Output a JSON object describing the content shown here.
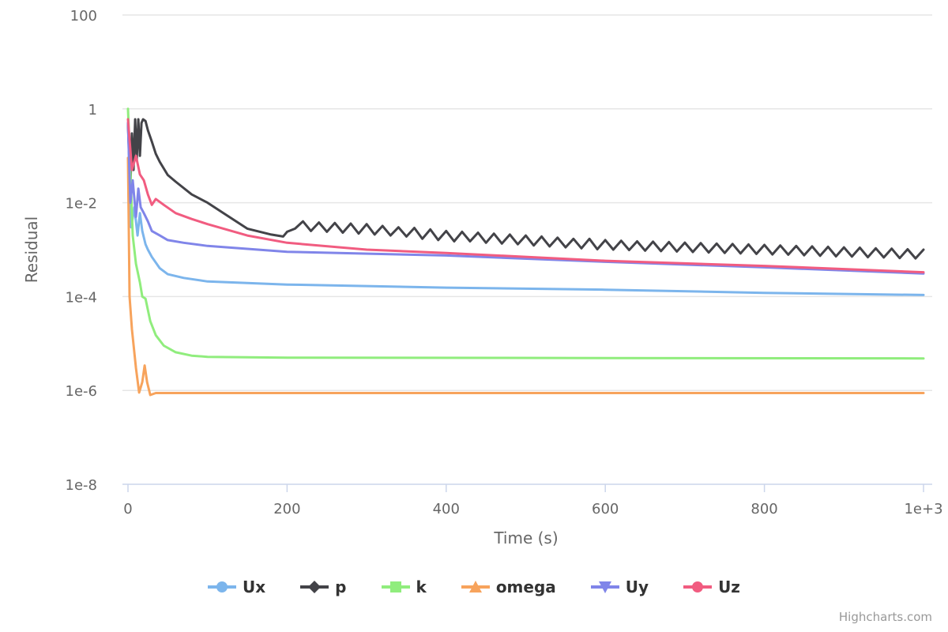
{
  "chart_data": {
    "type": "line",
    "title": "",
    "xlabel": "Time (s)",
    "ylabel": "Residual",
    "xlim": [
      0,
      1000
    ],
    "ylim_log10": [
      -8,
      2
    ],
    "y_scale": "log",
    "x_ticks": [
      0,
      200,
      400,
      600,
      800,
      1000
    ],
    "x_tick_labels": [
      "0",
      "200",
      "400",
      "600",
      "800",
      "1e+3"
    ],
    "y_ticks_log10": [
      2,
      0,
      -2,
      -4,
      -6,
      -8
    ],
    "y_tick_labels": [
      "100",
      "1",
      "1e-2",
      "1e-4",
      "1e-6",
      "1e-8"
    ],
    "grid": true,
    "legend_position": "bottom-center",
    "series": [
      {
        "name": "Ux",
        "color": "#7cb5ec",
        "marker": "circle",
        "points": [
          [
            0,
            0.5
          ],
          [
            4,
            0.003
          ],
          [
            8,
            0.008
          ],
          [
            12,
            0.002
          ],
          [
            15,
            0.006
          ],
          [
            18,
            0.0025
          ],
          [
            22,
            0.0013
          ],
          [
            25,
            0.001
          ],
          [
            30,
            0.0007
          ],
          [
            40,
            0.0004
          ],
          [
            50,
            0.0003
          ],
          [
            70,
            0.00025
          ],
          [
            100,
            0.00021
          ],
          [
            200,
            0.00018
          ],
          [
            400,
            0.000155
          ],
          [
            600,
            0.00014
          ],
          [
            800,
            0.00012
          ],
          [
            1000,
            0.000108
          ]
        ]
      },
      {
        "name": "p",
        "color": "#434348",
        "marker": "diamond",
        "points": [
          [
            0,
            0.5
          ],
          [
            3,
            0.02
          ],
          [
            5,
            0.3
          ],
          [
            7,
            0.05
          ],
          [
            9,
            0.6
          ],
          [
            11,
            0.08
          ],
          [
            13,
            0.6
          ],
          [
            15,
            0.1
          ],
          [
            17,
            0.5
          ],
          [
            19,
            0.6
          ],
          [
            22,
            0.55
          ],
          [
            25,
            0.35
          ],
          [
            30,
            0.2
          ],
          [
            35,
            0.11
          ],
          [
            40,
            0.074
          ],
          [
            50,
            0.039
          ],
          [
            60,
            0.028
          ],
          [
            80,
            0.015
          ],
          [
            100,
            0.01
          ],
          [
            120,
            0.006
          ],
          [
            150,
            0.0028
          ],
          [
            180,
            0.0021
          ],
          [
            195,
            0.0019
          ],
          [
            200,
            0.0024
          ],
          [
            210,
            0.0028
          ],
          [
            220,
            0.004
          ],
          [
            230,
            0.0025
          ],
          [
            240,
            0.0038
          ],
          [
            250,
            0.0024
          ],
          [
            260,
            0.0037
          ],
          [
            270,
            0.0023
          ],
          [
            280,
            0.0036
          ],
          [
            290,
            0.0022
          ],
          [
            300,
            0.0035
          ],
          [
            310,
            0.0021
          ],
          [
            320,
            0.0032
          ],
          [
            330,
            0.002
          ],
          [
            340,
            0.003
          ],
          [
            350,
            0.0019
          ],
          [
            360,
            0.0029
          ],
          [
            370,
            0.0017
          ],
          [
            380,
            0.0027
          ],
          [
            390,
            0.0016
          ],
          [
            400,
            0.0025
          ],
          [
            410,
            0.0015
          ],
          [
            420,
            0.0024
          ],
          [
            430,
            0.0015
          ],
          [
            440,
            0.0023
          ],
          [
            450,
            0.0014
          ],
          [
            460,
            0.0022
          ],
          [
            470,
            0.00135
          ],
          [
            480,
            0.0021
          ],
          [
            490,
            0.0013
          ],
          [
            500,
            0.002
          ],
          [
            510,
            0.00123
          ],
          [
            520,
            0.0019
          ],
          [
            530,
            0.00117
          ],
          [
            540,
            0.0018
          ],
          [
            550,
            0.00112
          ],
          [
            560,
            0.0017
          ],
          [
            570,
            0.00107
          ],
          [
            580,
            0.0017
          ],
          [
            590,
            0.00102
          ],
          [
            600,
            0.0016
          ],
          [
            610,
            0.001
          ],
          [
            620,
            0.00155
          ],
          [
            630,
            0.00098
          ],
          [
            640,
            0.0015
          ],
          [
            650,
            0.00095
          ],
          [
            660,
            0.00148
          ],
          [
            670,
            0.00093
          ],
          [
            680,
            0.00145
          ],
          [
            690,
            0.00091
          ],
          [
            700,
            0.00141
          ],
          [
            710,
            0.00089
          ],
          [
            720,
            0.00138
          ],
          [
            730,
            0.00087
          ],
          [
            740,
            0.00135
          ],
          [
            750,
            0.00085
          ],
          [
            760,
            0.00132
          ],
          [
            770,
            0.00083
          ],
          [
            780,
            0.00129
          ],
          [
            790,
            0.00081
          ],
          [
            800,
            0.00126
          ],
          [
            810,
            0.00079
          ],
          [
            820,
            0.00123
          ],
          [
            830,
            0.00078
          ],
          [
            840,
            0.0012
          ],
          [
            850,
            0.00076
          ],
          [
            860,
            0.00117
          ],
          [
            870,
            0.00074
          ],
          [
            880,
            0.00115
          ],
          [
            890,
            0.00072
          ],
          [
            900,
            0.00112
          ],
          [
            910,
            0.00071
          ],
          [
            920,
            0.0011
          ],
          [
            930,
            0.00069
          ],
          [
            940,
            0.00107
          ],
          [
            950,
            0.00068
          ],
          [
            960,
            0.00105
          ],
          [
            970,
            0.00066
          ],
          [
            980,
            0.00102
          ],
          [
            990,
            0.00065
          ],
          [
            1000,
            0.001
          ]
        ]
      },
      {
        "name": "k",
        "color": "#90ed7d",
        "marker": "square",
        "points": [
          [
            0,
            1
          ],
          [
            3,
            0.05
          ],
          [
            6,
            0.002
          ],
          [
            10,
            0.0005
          ],
          [
            15,
            0.0002
          ],
          [
            18,
            0.0001
          ],
          [
            22,
            9e-05
          ],
          [
            28,
            3e-05
          ],
          [
            35,
            1.5e-05
          ],
          [
            45,
            9e-06
          ],
          [
            60,
            6.5e-06
          ],
          [
            80,
            5.5e-06
          ],
          [
            100,
            5.2e-06
          ],
          [
            200,
            5e-06
          ],
          [
            1000,
            4.8e-06
          ]
        ]
      },
      {
        "name": "omega",
        "color": "#f7a35c",
        "marker": "triangle",
        "points": [
          [
            0,
            0.09
          ],
          [
            2,
            0.0001
          ],
          [
            5,
            2e-05
          ],
          [
            10,
            3e-06
          ],
          [
            14,
            9e-07
          ],
          [
            18,
            1.5e-06
          ],
          [
            21,
            3.4e-06
          ],
          [
            24,
            1.5e-06
          ],
          [
            28,
            8e-07
          ],
          [
            35,
            8.8e-07
          ],
          [
            1000,
            8.8e-07
          ]
        ]
      },
      {
        "name": "Uy",
        "color": "#8085e9",
        "marker": "triangle-down",
        "points": [
          [
            0,
            0.5
          ],
          [
            3,
            0.01
          ],
          [
            6,
            0.03
          ],
          [
            10,
            0.005
          ],
          [
            13,
            0.02
          ],
          [
            16,
            0.008
          ],
          [
            20,
            0.006
          ],
          [
            25,
            0.004
          ],
          [
            30,
            0.0025
          ],
          [
            40,
            0.002
          ],
          [
            50,
            0.0016
          ],
          [
            70,
            0.0014
          ],
          [
            100,
            0.0012
          ],
          [
            200,
            0.0009
          ],
          [
            400,
            0.00075
          ],
          [
            600,
            0.00055
          ],
          [
            800,
            0.00042
          ],
          [
            1000,
            0.00031
          ]
        ]
      },
      {
        "name": "Uz",
        "color": "#f15c80",
        "marker": "circle",
        "points": [
          [
            0,
            0.6
          ],
          [
            5,
            0.05
          ],
          [
            10,
            0.1
          ],
          [
            15,
            0.04
          ],
          [
            20,
            0.03
          ],
          [
            25,
            0.015
          ],
          [
            30,
            0.009
          ],
          [
            35,
            0.012
          ],
          [
            45,
            0.009
          ],
          [
            60,
            0.006
          ],
          [
            80,
            0.0045
          ],
          [
            100,
            0.0035
          ],
          [
            150,
            0.002
          ],
          [
            200,
            0.0014
          ],
          [
            300,
            0.001
          ],
          [
            400,
            0.00085
          ],
          [
            600,
            0.00058
          ],
          [
            800,
            0.00045
          ],
          [
            1000,
            0.00033
          ]
        ]
      }
    ]
  },
  "credits": "Highcharts.com"
}
